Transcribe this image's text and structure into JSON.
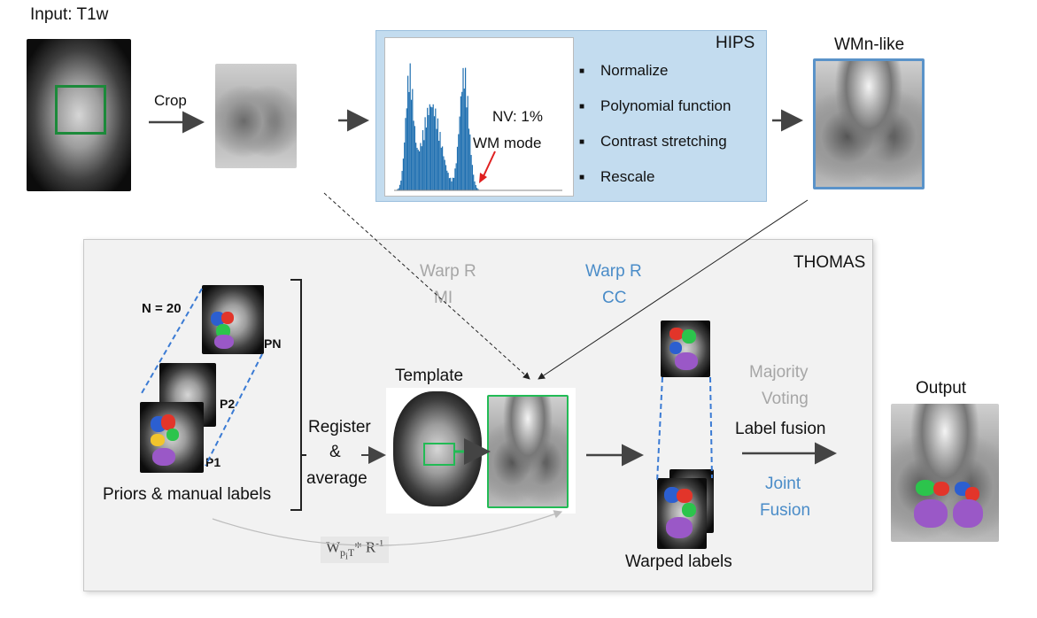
{
  "input": {
    "label": "Input: T1w"
  },
  "crop": {
    "label": "Crop"
  },
  "hips": {
    "title": "HIPS",
    "histogram_annotation_1": "NV: 1%",
    "histogram_annotation_2": "WM mode",
    "steps": [
      "Normalize",
      "Polynomial function",
      "Contrast stretching",
      "Rescale"
    ]
  },
  "wmn": {
    "label": "WMn-like"
  },
  "thomas": {
    "title": "THOMAS",
    "warp_mi_1": "Warp R",
    "warp_mi_2": "MI",
    "warp_cc_1": "Warp R",
    "warp_cc_2": "CC",
    "priors_count": "N = 20",
    "prior_labels": [
      "PN",
      "P2",
      "P1"
    ],
    "priors_caption": "Priors & manual labels",
    "register_1": "Register",
    "register_2": "&",
    "register_3": "average",
    "template_label": "Template",
    "majority_1": "Majority",
    "majority_2": "Voting",
    "label_fusion": "Label fusion",
    "joint_1": "Joint",
    "joint_2": "Fusion",
    "warped_caption": "Warped labels",
    "inverse_formula": "W p i T * R -1"
  },
  "output": {
    "label": "Output"
  },
  "colors": {
    "hips_panel": "#c3dcef",
    "histogram_bars": "#1f6fb0",
    "thomas_panel": "#f2f2f2",
    "accent_blue": "#4a8cc8",
    "muted_gray": "#a6a6a6",
    "template_box": "#22bb55",
    "input_crop_box": "#1c8a3a"
  }
}
